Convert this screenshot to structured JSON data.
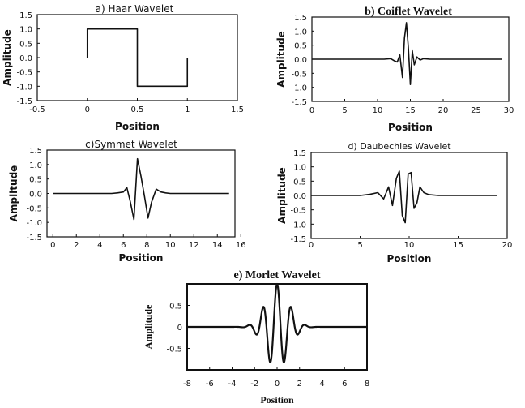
{
  "chart_data": [
    {
      "id": "haar",
      "type": "line",
      "title": "a) Haar Wavelet",
      "xlabel": "Position",
      "ylabel": "Amplitude",
      "xlim": [
        -0.5,
        1.5
      ],
      "ylim": [
        -1.5,
        1.5
      ],
      "xticks": [
        "-0.5",
        "0",
        "0.5",
        "1",
        "1.5"
      ],
      "yticks": [
        "1.5",
        "1.0",
        "0.5",
        "0.0",
        "-0.5",
        "-1.0",
        "-1.5"
      ],
      "series": [
        {
          "x": [
            0,
            0,
            0.5,
            0.5,
            1,
            1
          ],
          "y": [
            0,
            1,
            1,
            -1,
            -1,
            0
          ]
        }
      ]
    },
    {
      "id": "coiflet",
      "type": "line",
      "title": "b) Coiflet Wavelet",
      "xlabel": "Position",
      "ylabel": "Amplitude",
      "xlim": [
        0,
        30
      ],
      "ylim": [
        -1.5,
        1.5
      ],
      "xticks": [
        "0",
        "5",
        "10",
        "15",
        "20",
        "25",
        "30"
      ],
      "yticks": [
        "1.5",
        "1.0",
        "0.5",
        "0.0",
        "-0.5",
        "-1.0",
        "-1.5"
      ],
      "series": [
        {
          "x": [
            0,
            11,
            12,
            12.5,
            13,
            13.4,
            13.8,
            14.1,
            14.4,
            14.7,
            15.0,
            15.3,
            15.6,
            16.0,
            16.5,
            17,
            18,
            29
          ],
          "y": [
            0,
            0,
            0.02,
            -0.05,
            -0.1,
            0.15,
            -0.65,
            0.75,
            1.3,
            0.4,
            -0.9,
            0.3,
            -0.2,
            0.08,
            -0.03,
            0.02,
            0,
            0
          ]
        }
      ]
    },
    {
      "id": "symmet",
      "type": "line",
      "title": "c)Symmet Wavelet",
      "xlabel": "Position",
      "ylabel": "Amplitude",
      "xlim": [
        -0.5,
        15.5
      ],
      "ylim": [
        -1.5,
        1.5
      ],
      "xticks": [
        "0",
        "2",
        "4",
        "6",
        "8",
        "10",
        "12",
        "14",
        "16"
      ],
      "yticks": [
        "1.5",
        "1.0",
        "0.5",
        "0.0",
        "-0.5",
        "-1.0",
        "-1.5"
      ],
      "series": [
        {
          "x": [
            0,
            5,
            5.5,
            6,
            6.3,
            6.6,
            6.9,
            7.2,
            7.5,
            7.8,
            8.1,
            8.4,
            8.8,
            9.2,
            9.6,
            10,
            15
          ],
          "y": [
            0,
            0,
            0.02,
            0.05,
            0.2,
            -0.3,
            -0.9,
            1.2,
            0.6,
            -0.1,
            -0.85,
            -0.3,
            0.15,
            0.05,
            0.02,
            0,
            0
          ]
        }
      ]
    },
    {
      "id": "daubechies",
      "type": "line",
      "title": "d) Daubechies Wavelet",
      "xlabel": "Position",
      "ylabel": "Amplitude",
      "xlim": [
        0,
        20
      ],
      "ylim": [
        -1.5,
        1.5
      ],
      "xticks": [
        "0",
        "5",
        "10",
        "15",
        "20"
      ],
      "yticks": [
        "1.5",
        "1.0",
        "0.5",
        "0.0",
        "-0.5",
        "-1.0",
        "-1.5"
      ],
      "series": [
        {
          "x": [
            0,
            5,
            6,
            6.8,
            7.4,
            7.9,
            8.3,
            8.7,
            9.0,
            9.3,
            9.6,
            9.9,
            10.2,
            10.5,
            10.8,
            11.1,
            11.5,
            12,
            13,
            19
          ],
          "y": [
            0,
            0,
            0.04,
            0.1,
            -0.12,
            0.3,
            -0.35,
            0.6,
            0.85,
            -0.7,
            -0.95,
            0.75,
            0.8,
            -0.45,
            -0.25,
            0.3,
            0.1,
            0.03,
            0,
            0
          ]
        }
      ]
    },
    {
      "id": "morlet",
      "type": "line",
      "title": "e) Morlet Wavelet",
      "xlabel": "Position",
      "ylabel": "Amplitude",
      "xlim": [
        -8,
        8
      ],
      "ylim": [
        -1,
        1
      ],
      "xticks": [
        "-8",
        "-6",
        "-4",
        "-2",
        "0",
        "2",
        "4",
        "6",
        "8"
      ],
      "yticks": [
        "0.5",
        "0",
        "-0.5"
      ],
      "yticks_values": [
        0.5,
        0,
        -0.5
      ],
      "function": "morlet",
      "series": [
        {
          "x": [],
          "y": []
        }
      ]
    }
  ]
}
